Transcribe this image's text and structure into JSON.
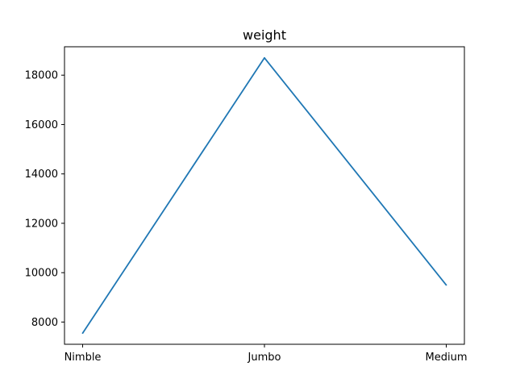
{
  "chart_data": {
    "type": "line",
    "title": "weight",
    "xlabel": "",
    "ylabel": "",
    "categories": [
      "Nimble",
      "Jumbo",
      "Medium"
    ],
    "series": [
      {
        "values": [
          7550,
          18700,
          9500
        ],
        "color": "#1f77b4"
      }
    ],
    "ylim": [
      7100,
      19150
    ],
    "yticks": [
      8000,
      10000,
      12000,
      14000,
      16000,
      18000
    ],
    "ytick_labels": [
      "8000",
      "10000",
      "12000",
      "14000",
      "16000",
      "18000"
    ],
    "grid": false,
    "legend": false
  }
}
